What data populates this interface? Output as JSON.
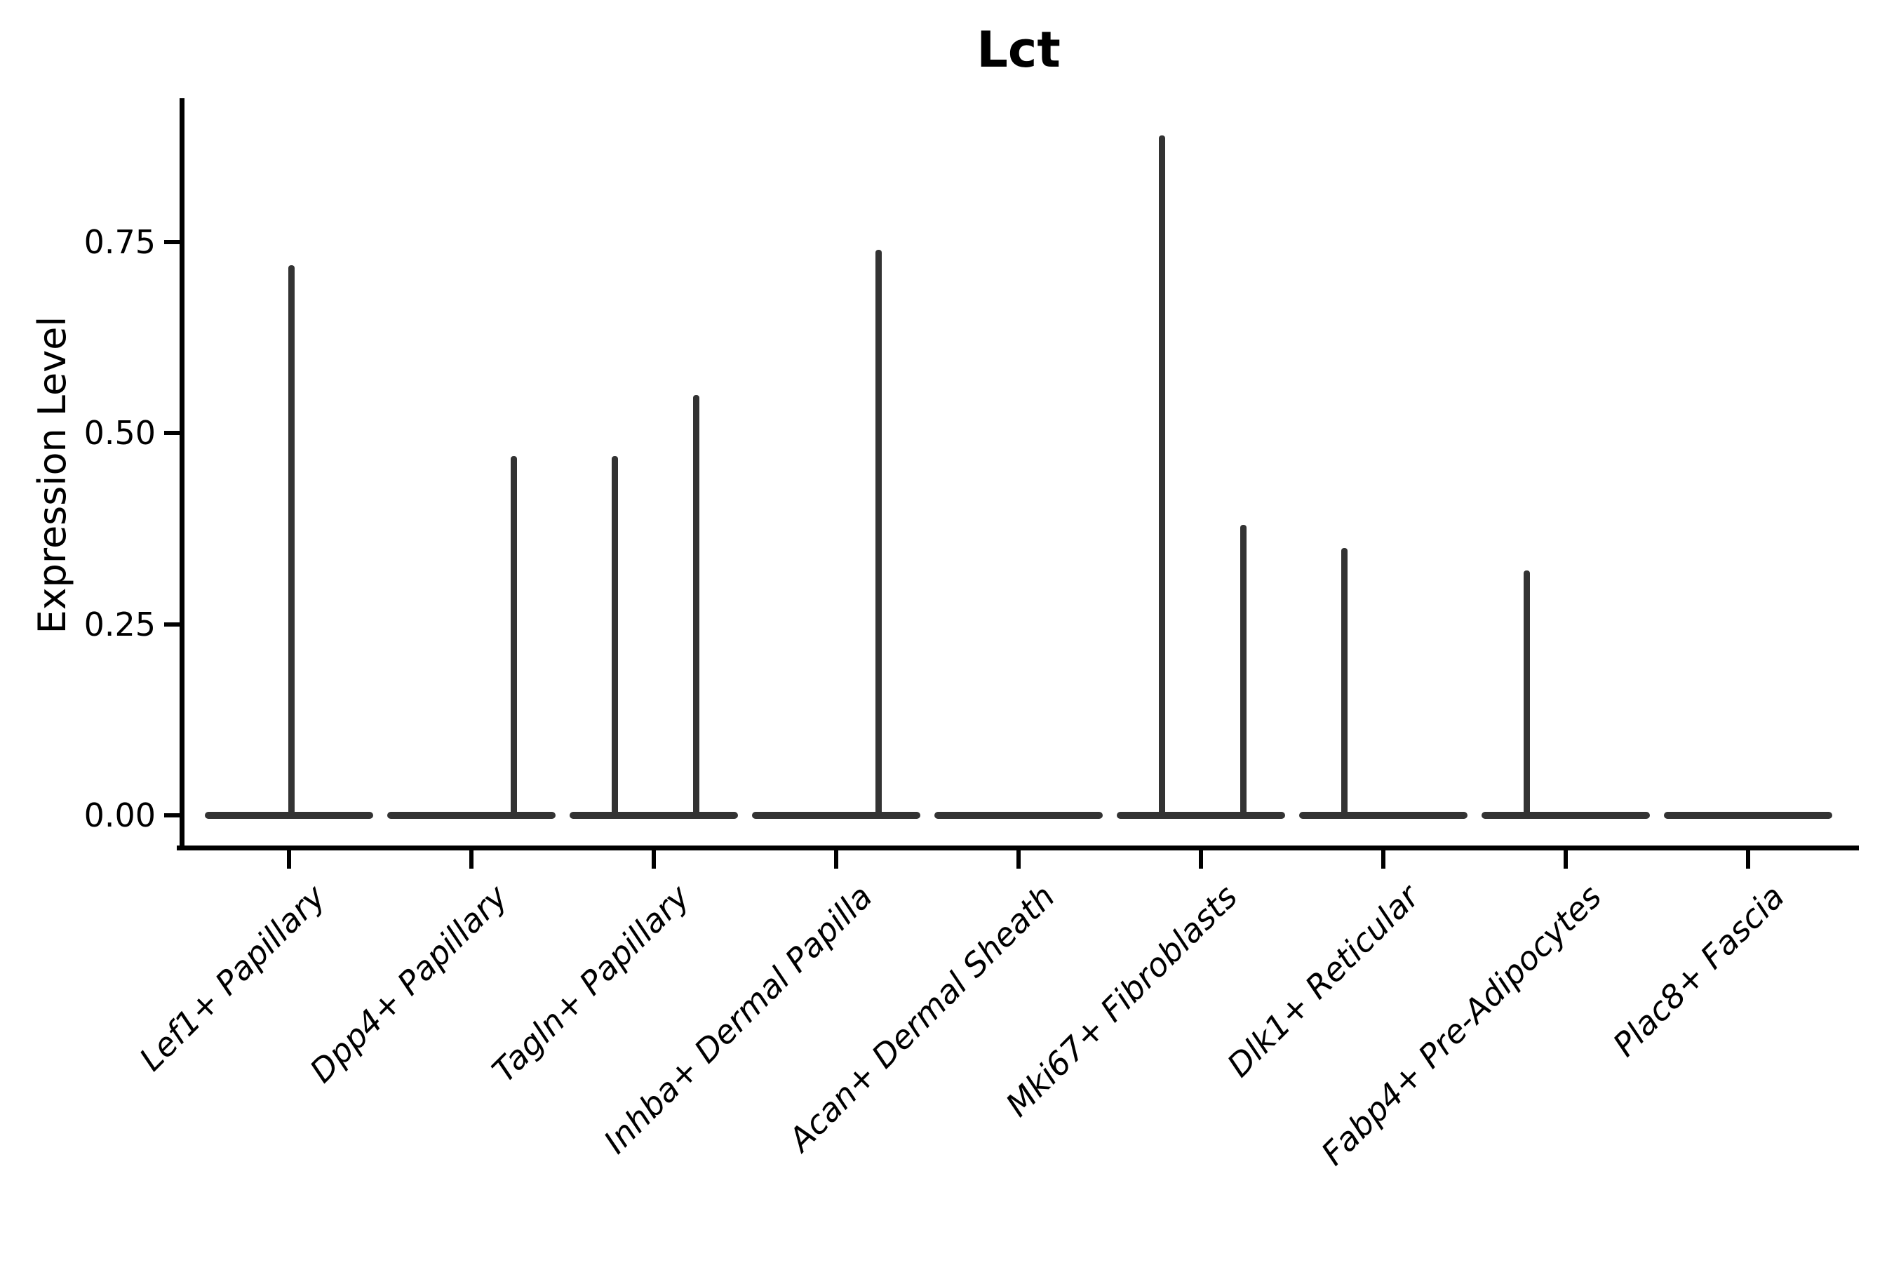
{
  "title": "Lct",
  "axes": {
    "ylabel": "Expression Level",
    "ytick_labels": [
      "0.00",
      "0.25",
      "0.50",
      "0.75"
    ],
    "colors": {
      "violin": "#333333",
      "axis": "#000000",
      "text": "#000000",
      "background": "#ffffff"
    }
  },
  "chart_data": {
    "type": "violin",
    "title": "Lct",
    "xlabel": "",
    "ylabel": "Expression Level",
    "ylim": [
      0,
      0.94
    ],
    "yticks": [
      0,
      0.25,
      0.5,
      0.75
    ],
    "grid": false,
    "legend": "none",
    "categories": [
      "Lef1+ Papillary",
      "Dpp4+ Papillary",
      "Tagln+ Papillary",
      "Inhba+ Dermal Papilla",
      "Acan+ Dermal Sheath",
      "Mki67+ Fibroblasts",
      "Dlk1+ Reticular",
      "Fabp4+ Pre-Adipocytes",
      "Plac8+ Fascia"
    ],
    "series": [
      {
        "category": "Lef1+ Papillary",
        "baseline_at_zero": true,
        "violins": [
          {
            "position": "center",
            "max_expression": 0.72
          }
        ]
      },
      {
        "category": "Dpp4+ Papillary",
        "baseline_at_zero": true,
        "violins": [
          {
            "position": "right",
            "max_expression": 0.47
          }
        ]
      },
      {
        "category": "Tagln+ Papillary",
        "baseline_at_zero": true,
        "violins": [
          {
            "position": "left",
            "max_expression": 0.47
          },
          {
            "position": "right",
            "max_expression": 0.55
          }
        ]
      },
      {
        "category": "Inhba+ Dermal Papilla",
        "baseline_at_zero": true,
        "violins": [
          {
            "position": "right",
            "max_expression": 0.74
          }
        ]
      },
      {
        "category": "Acan+ Dermal Sheath",
        "baseline_at_zero": true,
        "violins": []
      },
      {
        "category": "Mki67+ Fibroblasts",
        "baseline_at_zero": true,
        "violins": [
          {
            "position": "left",
            "max_expression": 0.89
          },
          {
            "position": "right",
            "max_expression": 0.38
          }
        ]
      },
      {
        "category": "Dlk1+ Reticular",
        "baseline_at_zero": true,
        "violins": [
          {
            "position": "left",
            "max_expression": 0.35
          }
        ]
      },
      {
        "category": "Fabp4+ Pre-Adipocytes",
        "baseline_at_zero": true,
        "violins": [
          {
            "position": "left",
            "max_expression": 0.32
          }
        ]
      },
      {
        "category": "Plac8+ Fascia",
        "baseline_at_zero": true,
        "violins": []
      }
    ]
  }
}
